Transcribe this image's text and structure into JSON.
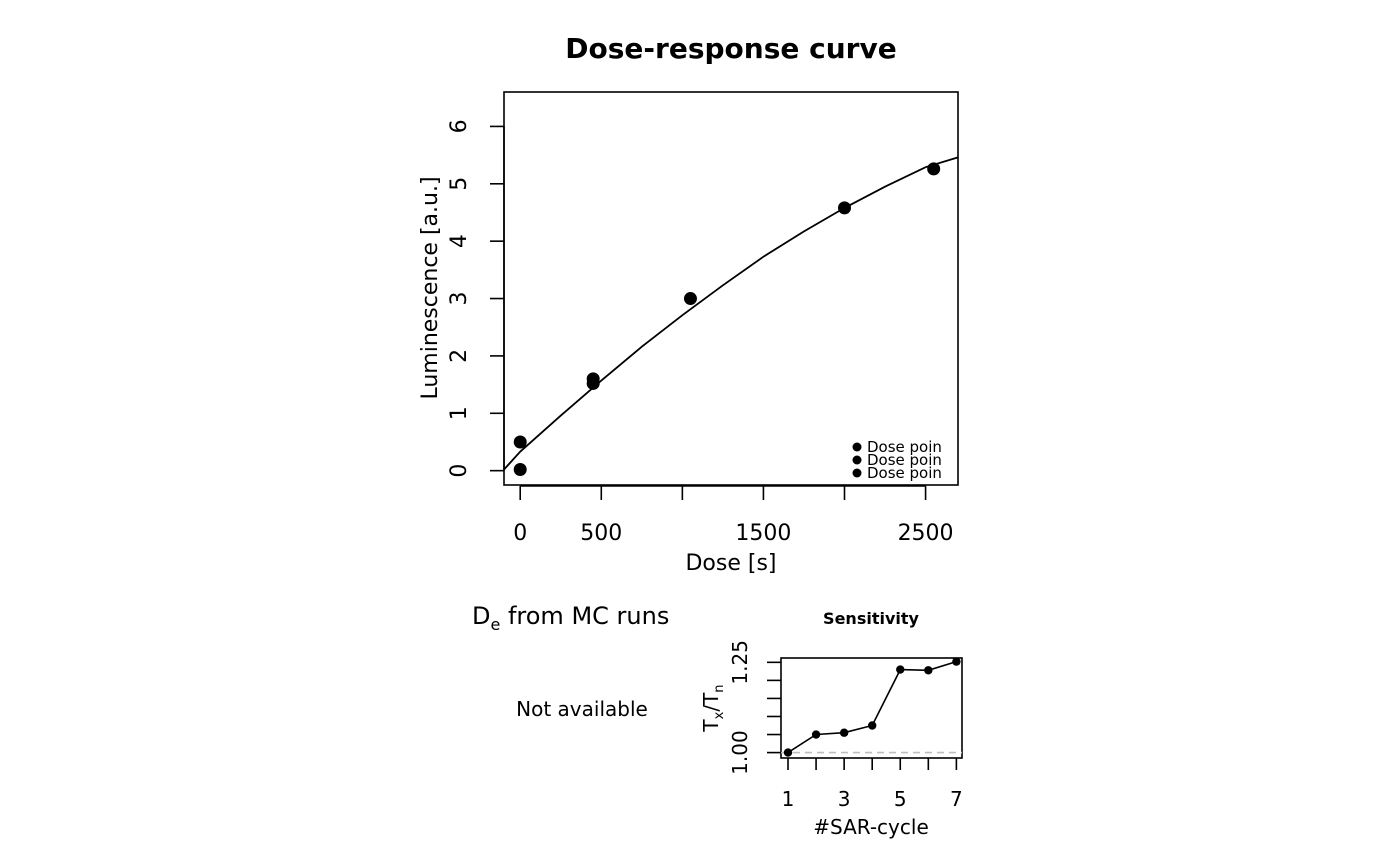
{
  "chart_data": [
    {
      "type": "scatter",
      "title": "Dose-response curve",
      "xlabel": "Dose [s]",
      "ylabel": "Luminescence [a.u.]",
      "xlim": [
        -100,
        2700
      ],
      "ylim": [
        -0.25,
        6.6
      ],
      "xticks": [
        0,
        500,
        1000,
        1500,
        2000,
        2500
      ],
      "xtick_labels": [
        "0",
        "500",
        "",
        "1500",
        "",
        "2500"
      ],
      "yticks": [
        0,
        1,
        2,
        3,
        4,
        5,
        6
      ],
      "ytick_labels": [
        "0",
        "1",
        "2",
        "3",
        "4",
        "5",
        "6"
      ],
      "grid": false,
      "series": [
        {
          "x": [
            0,
            0,
            450,
            450,
            1050,
            2000,
            2550
          ],
          "y": [
            0.02,
            0.5,
            1.6,
            1.52,
            3.0,
            4.58,
            5.26
          ]
        }
      ],
      "fit_curve": {
        "x": [
          -100,
          0,
          250,
          500,
          750,
          1000,
          1250,
          1500,
          1750,
          2000,
          2250,
          2500,
          2700
        ],
        "y": [
          0.02,
          0.33,
          0.96,
          1.57,
          2.16,
          2.71,
          3.23,
          3.73,
          4.17,
          4.58,
          4.95,
          5.29,
          5.46
        ]
      },
      "legend": {
        "position": "bottom-right",
        "entries": [
          "Dose poin",
          "Dose poin",
          "Dose poin"
        ]
      }
    },
    {
      "type": "text",
      "title": "D",
      "title_subscript": "e",
      "title_rest": " from MC runs",
      "message": "Not available"
    },
    {
      "type": "line",
      "title": "Sensitivity",
      "xlabel": "#SAR-cycle",
      "ylabel": "T",
      "ylabel_sub1": "x",
      "ylabel_mid": "/T",
      "ylabel_sub2": "n",
      "xlim": [
        0.75,
        7.2
      ],
      "ylim": [
        0.985,
        1.262
      ],
      "xticks": [
        1,
        2,
        3,
        4,
        5,
        6,
        7
      ],
      "xtick_labels": [
        "1",
        "",
        "3",
        "",
        "5",
        "",
        "7"
      ],
      "yticks": [
        1.0,
        1.05,
        1.1,
        1.15,
        1.2,
        1.25
      ],
      "ytick_labels": [
        "1.00",
        "",
        "",
        "",
        "",
        "1.25"
      ],
      "reference_line": 1.0,
      "reference_color": "#bebebe",
      "series": [
        {
          "x": [
            1,
            2,
            3,
            4,
            5,
            6,
            7
          ],
          "y": [
            1.0,
            1.05,
            1.055,
            1.075,
            1.23,
            1.228,
            1.252
          ]
        }
      ]
    }
  ]
}
